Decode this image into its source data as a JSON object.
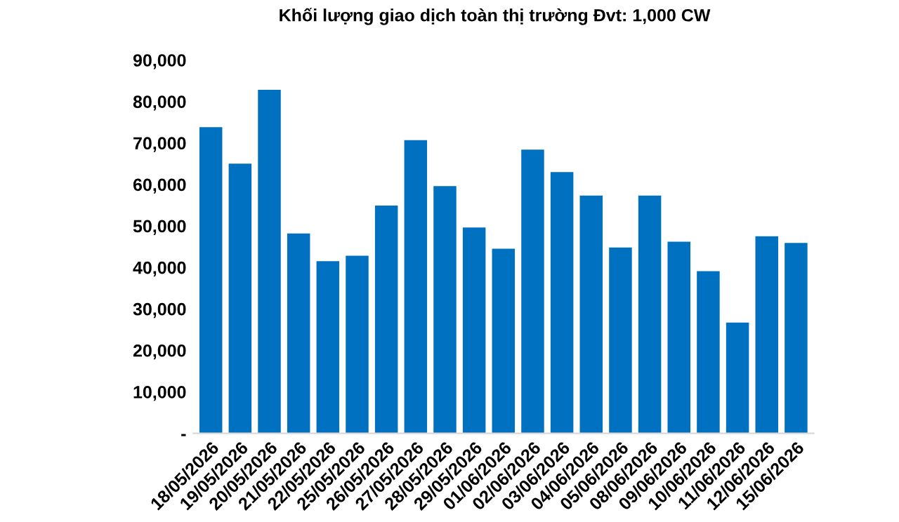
{
  "chart_data": {
    "type": "bar",
    "title": "Khối lượng giao dịch toàn thị trường Đvt: 1,000 CW",
    "categories": [
      "18/05/2026",
      "19/05/2026",
      "20/05/2026",
      "21/05/2026",
      "22/05/2026",
      "25/05/2026",
      "26/05/2026",
      "27/05/2026",
      "28/05/2026",
      "29/05/2026",
      "01/06/2026",
      "02/06/2026",
      "03/06/2026",
      "04/06/2026",
      "05/06/2026",
      "08/06/2026",
      "09/06/2026",
      "10/06/2026",
      "11/06/2026",
      "12/06/2026",
      "15/06/2026"
    ],
    "values": [
      73800,
      65000,
      82800,
      48200,
      41500,
      42800,
      54900,
      70700,
      59600,
      49600,
      44500,
      68400,
      63000,
      57300,
      44800,
      57300,
      46200,
      39100,
      26700,
      47500,
      45900
    ],
    "color": "#0070c0",
    "ylim": [
      0,
      90000
    ],
    "yticks": [
      {
        "value": 0,
        "label": "-"
      },
      {
        "value": 10000,
        "label": "10,000"
      },
      {
        "value": 20000,
        "label": "20,000"
      },
      {
        "value": 30000,
        "label": "30,000"
      },
      {
        "value": 40000,
        "label": "40,000"
      },
      {
        "value": 50000,
        "label": "50,000"
      },
      {
        "value": 60000,
        "label": "60,000"
      },
      {
        "value": 70000,
        "label": "70,000"
      },
      {
        "value": 80000,
        "label": "80,000"
      },
      {
        "value": 90000,
        "label": "90,000"
      }
    ],
    "grid": false,
    "legend": false
  }
}
